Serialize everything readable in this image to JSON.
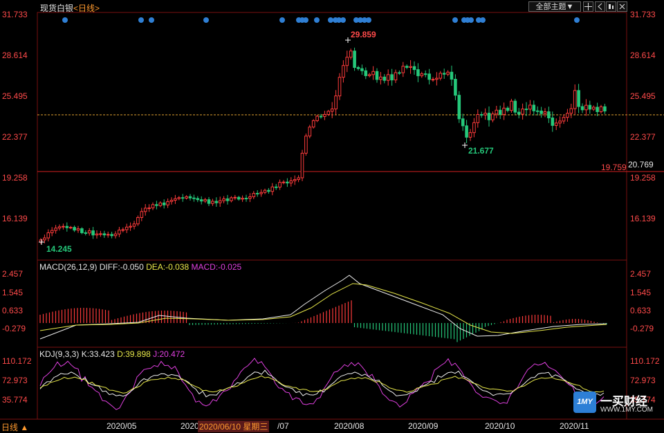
{
  "header": {
    "instrument": "现货白银",
    "period": "<日线>",
    "theme_button": "全部主题",
    "theme_arrow": "▼"
  },
  "colors": {
    "up": "#ff3b3b",
    "down": "#25c87a",
    "dif": "#f0f0f0",
    "dea": "#e8e84a",
    "j": "#e040e0",
    "dot": "#2f7fd4",
    "grid": "#7a1010"
  },
  "price_panel": {
    "yticks": [
      "31.733",
      "28.614",
      "25.495",
      "22.377",
      "19.258",
      "16.139"
    ],
    "high_label": "29.859",
    "low_label": "21.677",
    "start_low_label": "14.245",
    "ref_line_label": "19.759",
    "cross_price_label": "20.769"
  },
  "macd_panel": {
    "title": "MACD(26,12,9)",
    "diff": "DIFF:-0.050",
    "dea": "DEA:-0.038",
    "macd": "MACD:-0.025",
    "yticks": [
      "2.457",
      "1.545",
      "0.633",
      "-0.279"
    ]
  },
  "kdj_panel": {
    "title": "KDJ(9,3,3)",
    "k": "K:33.423",
    "d": "D:39.898",
    "j": "J:20.472",
    "yticks": [
      "110.172",
      "72.973",
      "35.774"
    ]
  },
  "xaxis": {
    "labels": [
      "2020/05",
      "2020",
      "/07",
      "2020/08",
      "2020/09",
      "2020/10",
      "2020/11"
    ],
    "tooltip_date": "2020/06/10 星期三",
    "period_tab": "日线",
    "period_tab_arrow": "▲"
  },
  "watermark": {
    "logo_text": "1MY",
    "name": "一买财经",
    "url": "WWW.1MY.COM"
  },
  "chart_data": {
    "type": "candlestick",
    "price_range": [
      13.7,
      32.0
    ],
    "high": 29.859,
    "low_after_peak": 21.677,
    "start_low": 14.245,
    "reference_line": 19.759
  }
}
